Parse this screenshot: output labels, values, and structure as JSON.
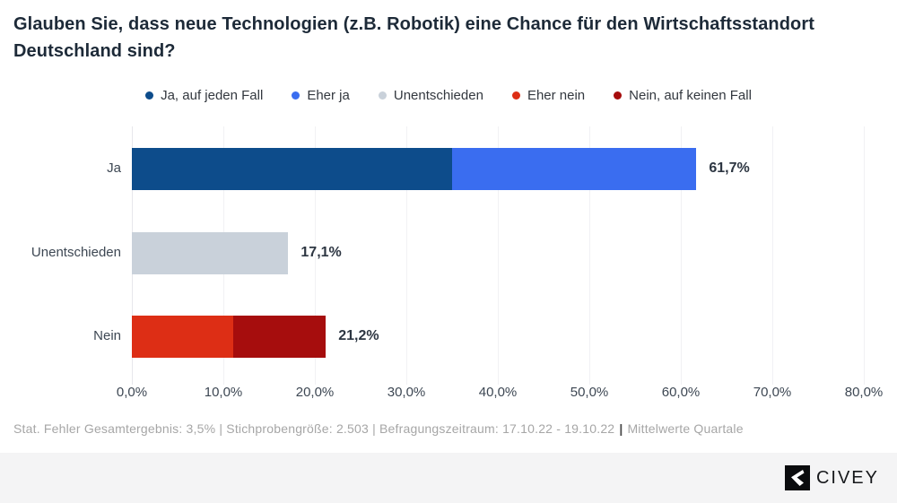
{
  "title": "Glauben Sie, dass neue Technologien (z.B. Robotik) eine Chance für den Wirtschaftsstandort Deutschland sind?",
  "legend": [
    {
      "label": "Ja, auf jeden Fall",
      "color": "#0d4c8b"
    },
    {
      "label": "Eher ja",
      "color": "#3a6df0"
    },
    {
      "label": "Unentschieden",
      "color": "#c9d1da"
    },
    {
      "label": "Eher nein",
      "color": "#dd2e15"
    },
    {
      "label": "Nein, auf keinen Fall",
      "color": "#a60d0d"
    }
  ],
  "chart_data": {
    "type": "bar",
    "orientation": "horizontal",
    "stacked": true,
    "title": "Glauben Sie, dass neue Technologien (z.B. Robotik) eine Chance für den Wirtschaftsstandort Deutschland sind?",
    "xlabel": "",
    "ylabel": "",
    "xlim": [
      0,
      80
    ],
    "grid": true,
    "legend_position": "top",
    "x_ticks": [
      "0,0%",
      "10,0%",
      "20,0%",
      "30,0%",
      "40,0%",
      "50,0%",
      "60,0%",
      "70,0%",
      "80,0%"
    ],
    "categories": [
      "Ja",
      "Unentschieden",
      "Nein"
    ],
    "rows": [
      {
        "category": "Ja",
        "total_value": 61.7,
        "total_label": "61,7%",
        "segments": [
          {
            "name": "Ja, auf jeden Fall",
            "value": 35.0,
            "color": "#0d4c8b"
          },
          {
            "name": "Eher ja",
            "value": 26.7,
            "color": "#3a6df0"
          }
        ]
      },
      {
        "category": "Unentschieden",
        "total_value": 17.1,
        "total_label": "17,1%",
        "segments": [
          {
            "name": "Unentschieden",
            "value": 17.1,
            "color": "#c9d1da"
          }
        ]
      },
      {
        "category": "Nein",
        "total_value": 21.2,
        "total_label": "21,2%",
        "segments": [
          {
            "name": "Eher nein",
            "value": 11.1,
            "color": "#dd2e15"
          },
          {
            "name": "Nein, auf keinen Fall",
            "value": 10.1,
            "color": "#a60d0d"
          }
        ]
      }
    ]
  },
  "source": {
    "main": "Stat. Fehler Gesamtergebnis: 3,5% | Stichprobengröße: 2.503 | Befragungszeitraum: 17.10.22 - 19.10.22",
    "divider": "|",
    "highlight": "Mittelwerte Quartale"
  },
  "branding": {
    "logo_text": "CIVEY"
  }
}
